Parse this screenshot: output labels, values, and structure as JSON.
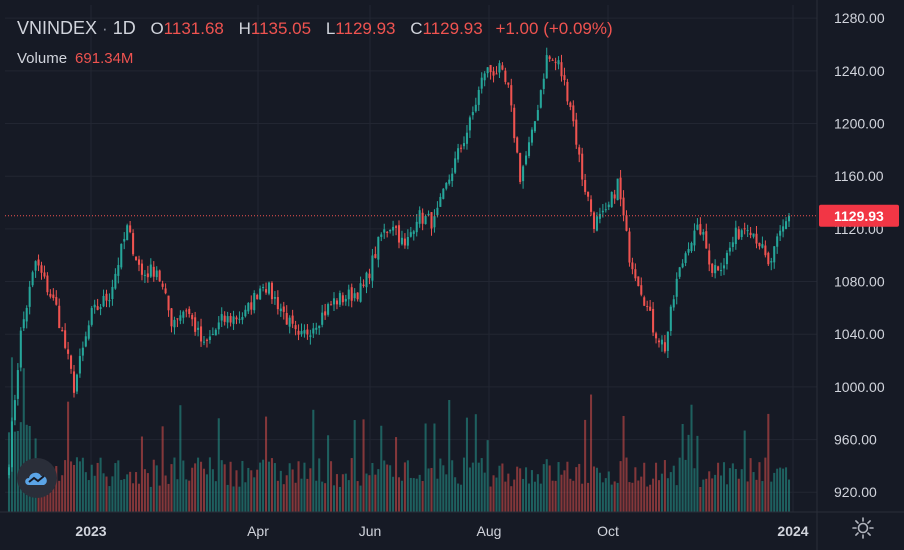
{
  "legend": {
    "symbol": "VNINDEX",
    "interval": "1D",
    "o_label": "O",
    "o_value": "1131.68",
    "h_label": "H",
    "h_value": "1135.05",
    "l_label": "L",
    "l_value": "1129.93",
    "c_label": "C",
    "c_value": "1129.93",
    "change": "+1.00 (+0.09%)",
    "volume_label": "Volume",
    "volume_value": "691.34M"
  },
  "colors": {
    "background": "#161a25",
    "up": "#26a69a",
    "down": "#ef5350",
    "grid": "#222632",
    "text": "#d1d4dc",
    "price_tag": "#f23645"
  },
  "icons": {
    "logo": "tradingview-cloud-logo-icon",
    "settings": "gear-icon"
  },
  "chart_data": {
    "type": "candlestick",
    "title": "VNINDEX · 1D",
    "xlabel": "",
    "ylabel": "",
    "ylim": [
      905,
      1290
    ],
    "y_ticks": [
      "1280.00",
      "1240.00",
      "1200.00",
      "1160.00",
      "1120.00",
      "1080.00",
      "1040.00",
      "1000.00",
      "960.00",
      "920.00"
    ],
    "x_ticks": [
      "2023",
      "Apr",
      "Jun",
      "Aug",
      "Oct",
      "2024"
    ],
    "last_price": 1129.93,
    "last_price_label": "1129.93",
    "trend_waypoints": [
      {
        "x": 0,
        "y": 945
      },
      {
        "x": 4,
        "y": 1040
      },
      {
        "x": 9,
        "y": 1095
      },
      {
        "x": 16,
        "y": 1060
      },
      {
        "x": 22,
        "y": 1000
      },
      {
        "x": 28,
        "y": 1055
      },
      {
        "x": 34,
        "y": 1070
      },
      {
        "x": 40,
        "y": 1120
      },
      {
        "x": 45,
        "y": 1085
      },
      {
        "x": 50,
        "y": 1090
      },
      {
        "x": 55,
        "y": 1050
      },
      {
        "x": 60,
        "y": 1060
      },
      {
        "x": 66,
        "y": 1030
      },
      {
        "x": 72,
        "y": 1050
      },
      {
        "x": 80,
        "y": 1055
      },
      {
        "x": 86,
        "y": 1080
      },
      {
        "x": 92,
        "y": 1060
      },
      {
        "x": 98,
        "y": 1035
      },
      {
        "x": 104,
        "y": 1050
      },
      {
        "x": 110,
        "y": 1065
      },
      {
        "x": 116,
        "y": 1070
      },
      {
        "x": 120,
        "y": 1075
      },
      {
        "x": 126,
        "y": 1115
      },
      {
        "x": 130,
        "y": 1125
      },
      {
        "x": 134,
        "y": 1105
      },
      {
        "x": 138,
        "y": 1130
      },
      {
        "x": 144,
        "y": 1125
      },
      {
        "x": 150,
        "y": 1165
      },
      {
        "x": 156,
        "y": 1200
      },
      {
        "x": 161,
        "y": 1240
      },
      {
        "x": 166,
        "y": 1240
      },
      {
        "x": 169,
        "y": 1225
      },
      {
        "x": 173,
        "y": 1160
      },
      {
        "x": 177,
        "y": 1190
      },
      {
        "x": 182,
        "y": 1250
      },
      {
        "x": 186,
        "y": 1245
      },
      {
        "x": 190,
        "y": 1215
      },
      {
        "x": 194,
        "y": 1160
      },
      {
        "x": 198,
        "y": 1125
      },
      {
        "x": 202,
        "y": 1130
      },
      {
        "x": 206,
        "y": 1155
      },
      {
        "x": 210,
        "y": 1100
      },
      {
        "x": 214,
        "y": 1075
      },
      {
        "x": 218,
        "y": 1045
      },
      {
        "x": 222,
        "y": 1030
      },
      {
        "x": 226,
        "y": 1080
      },
      {
        "x": 230,
        "y": 1110
      },
      {
        "x": 234,
        "y": 1120
      },
      {
        "x": 238,
        "y": 1090
      },
      {
        "x": 242,
        "y": 1095
      },
      {
        "x": 246,
        "y": 1115
      },
      {
        "x": 250,
        "y": 1125
      },
      {
        "x": 254,
        "y": 1110
      },
      {
        "x": 257,
        "y": 1090
      },
      {
        "x": 261,
        "y": 1115
      },
      {
        "x": 264,
        "y": 1129.93
      }
    ],
    "bar_count": 265
  }
}
